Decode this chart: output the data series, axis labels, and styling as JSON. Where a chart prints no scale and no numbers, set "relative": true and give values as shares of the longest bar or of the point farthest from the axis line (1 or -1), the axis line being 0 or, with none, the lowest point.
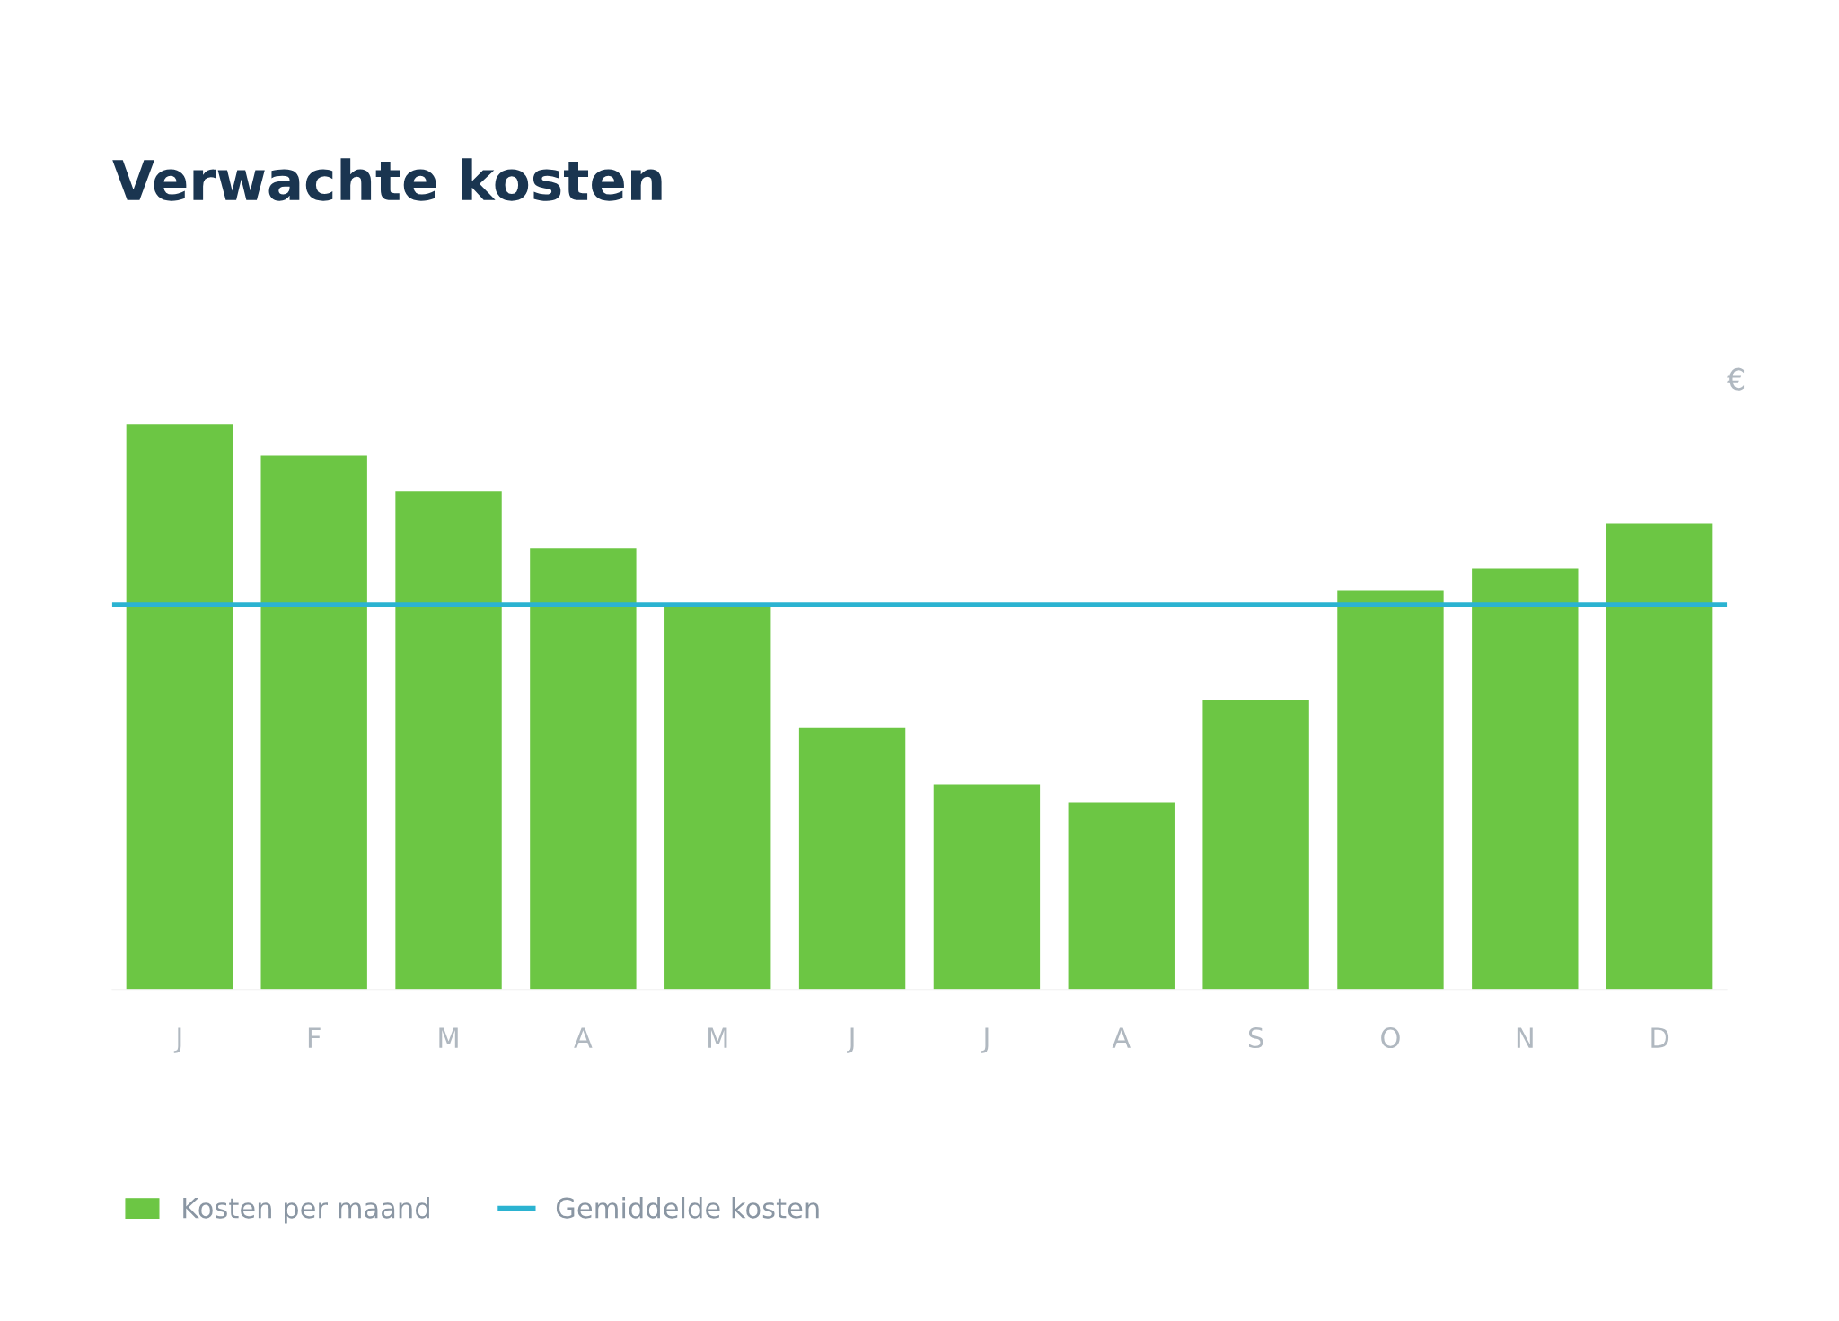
{
  "chart_data": {
    "type": "bar",
    "title": "Verwachte kosten",
    "ylabel": "€",
    "relative": true,
    "categories": [
      "J",
      "F",
      "M",
      "A",
      "M",
      "J",
      "J",
      "A",
      "S",
      "O",
      "N",
      "D"
    ],
    "series": [
      {
        "name": "Kosten per maand",
        "color": "#6cc644",
        "values": [
          1,
          0.944,
          0.881,
          0.781,
          0.683,
          0.4625,
          0.3625,
          0.331,
          0.5125,
          0.706,
          0.744,
          0.825
        ]
      }
    ],
    "ref_lines": [
      {
        "axis": "y",
        "value": 0.681,
        "label": "Gemiddelde kosten",
        "color": "#2bb3d1"
      }
    ],
    "legend": "bottom"
  }
}
